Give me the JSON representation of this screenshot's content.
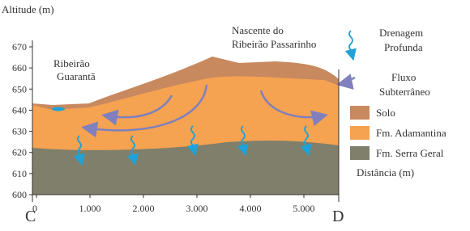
{
  "axis": {
    "y_label": "Altitude (m)",
    "x_label": "Distância (m)",
    "yticks": [
      600,
      610,
      620,
      630,
      640,
      650,
      660,
      670
    ],
    "xticks": [
      "0",
      "1.000",
      "2.000",
      "3.000",
      "4.000",
      "5.000"
    ]
  },
  "endpoints": {
    "start": "C",
    "end": "D"
  },
  "annotations": {
    "ribeirao_guaranta": [
      "Ribeirão",
      "Guarantã"
    ],
    "nascente": [
      "Nascente do",
      "Ribeirão Passarinho"
    ],
    "drenagem": [
      "Drenagem",
      "Profunda"
    ],
    "fluxo": [
      "Fluxo",
      "Subterrâneo"
    ]
  },
  "legend": [
    "Solo",
    "Fm. Adamantina",
    "Fm. Serra Geral"
  ]
}
